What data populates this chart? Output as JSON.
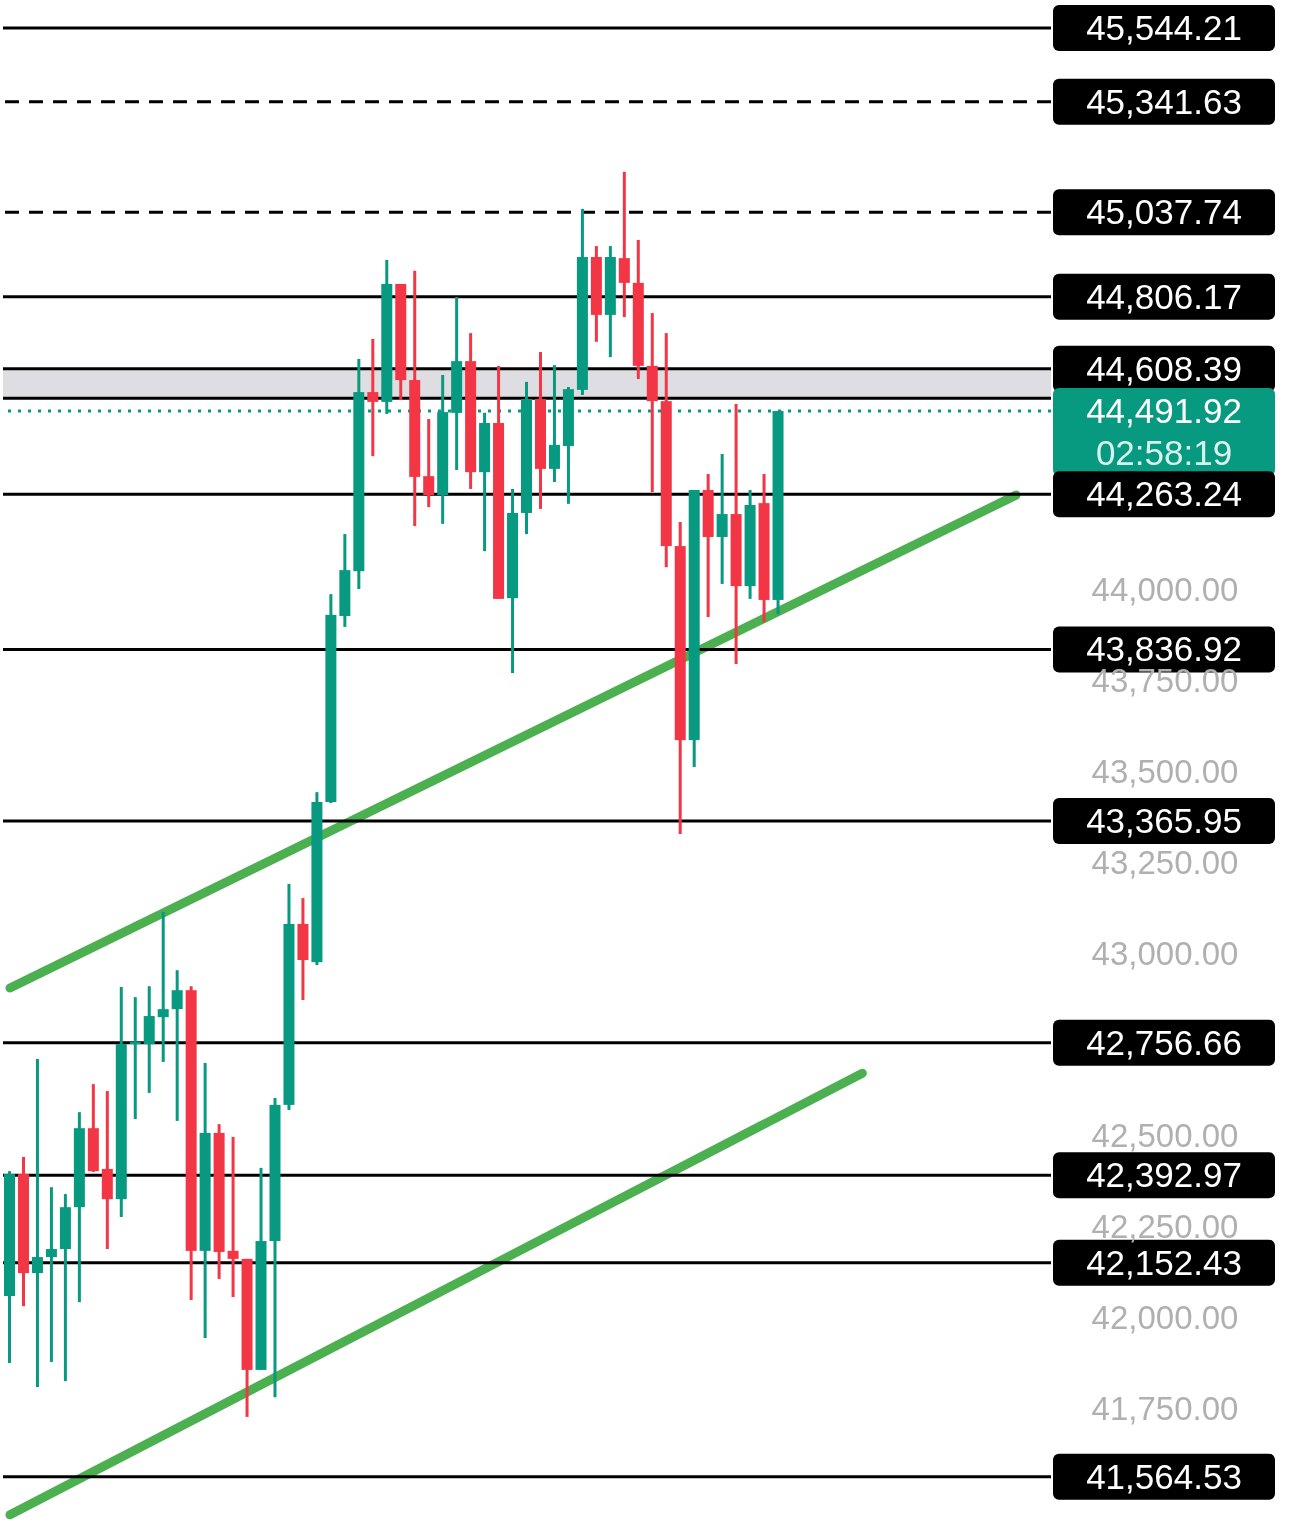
{
  "chart_data": {
    "type": "candlestick",
    "categories": [
      null,
      null,
      null,
      null,
      null,
      null,
      null,
      null,
      null,
      null,
      null,
      null,
      null,
      null,
      null,
      null,
      null,
      null,
      null,
      null,
      null,
      null,
      null,
      null,
      null,
      null,
      null,
      null,
      null,
      null,
      null,
      null,
      null,
      null,
      null,
      null,
      null,
      null,
      null,
      null,
      null,
      null,
      null,
      null,
      null,
      null,
      null,
      null,
      null,
      null,
      null,
      null,
      null,
      null,
      null,
      null,
      null,
      null,
      null,
      null,
      null,
      null,
      null,
      null,
      null,
      null,
      null,
      null,
      null,
      null,
      null,
      null,
      null,
      null,
      null
    ],
    "ohlc": [
      [
        42061,
        42404,
        41877,
        42396
      ],
      [
        42396,
        42443,
        42033,
        42124
      ],
      [
        42124,
        42712,
        41811,
        42168
      ],
      [
        42168,
        42360,
        41880,
        42190
      ],
      [
        42190,
        42341,
        41827,
        42305
      ],
      [
        42305,
        42566,
        42044,
        42522
      ],
      [
        42522,
        42643,
        42402,
        42404
      ],
      [
        42410,
        42624,
        42190,
        42327
      ],
      [
        42327,
        42910,
        42278,
        42753
      ],
      [
        42753,
        42882,
        42547,
        42759
      ],
      [
        42753,
        42912,
        42619,
        42830
      ],
      [
        42827,
        43116,
        42704,
        42849
      ],
      [
        42849,
        42956,
        42542,
        42901
      ],
      [
        42901,
        42912,
        42050,
        42185
      ],
      [
        42185,
        42701,
        41946,
        42509
      ],
      [
        42509,
        42533,
        42108,
        42182
      ],
      [
        42185,
        42498,
        42058,
        42163
      ],
      [
        42163,
        42163,
        41729,
        41858
      ],
      [
        41858,
        42413,
        41858,
        42212
      ],
      [
        42212,
        42605,
        41783,
        42586
      ],
      [
        42586,
        43193,
        42572,
        43083
      ],
      [
        43083,
        43154,
        42874,
        42984
      ],
      [
        42978,
        43445,
        42970,
        43418
      ],
      [
        43418,
        43989,
        43415,
        43932
      ],
      [
        43929,
        44154,
        43899,
        44055
      ],
      [
        44052,
        44635,
        44003,
        44544
      ],
      [
        44544,
        44690,
        44368,
        44517
      ],
      [
        44517,
        44907,
        44484,
        44841
      ],
      [
        44841,
        44841,
        44522,
        44577
      ],
      [
        44577,
        44877,
        44176,
        44311
      ],
      [
        44313,
        44470,
        44228,
        44261
      ],
      [
        44261,
        44591,
        44182,
        44489
      ],
      [
        44487,
        44805,
        44330,
        44629
      ],
      [
        44629,
        44706,
        44278,
        44324
      ],
      [
        44324,
        44487,
        44107,
        44459
      ],
      [
        44459,
        44616,
        43976,
        43976
      ],
      [
        43978,
        44278,
        43772,
        44212
      ],
      [
        44212,
        44572,
        44154,
        44525
      ],
      [
        44525,
        44654,
        44223,
        44333
      ],
      [
        44333,
        44618,
        44297,
        44399
      ],
      [
        44396,
        44558,
        44237,
        44552
      ],
      [
        44550,
        45047,
        44536,
        44915
      ],
      [
        44915,
        44945,
        44682,
        44756
      ],
      [
        44756,
        44945,
        44640,
        44915
      ],
      [
        44912,
        45149,
        44750,
        44844
      ],
      [
        44844,
        44962,
        44580,
        44616
      ],
      [
        44616,
        44761,
        44269,
        44519
      ],
      [
        44519,
        44706,
        44063,
        44121
      ],
      [
        44121,
        44187,
        43330,
        43588
      ],
      [
        43588,
        44275,
        43514,
        44275
      ],
      [
        44275,
        44319,
        43926,
        44146
      ],
      [
        44146,
        44374,
        44017,
        44209
      ],
      [
        44209,
        44511,
        43797,
        44011
      ],
      [
        44011,
        44275,
        43976,
        44234
      ],
      [
        44239,
        44319,
        43912,
        43973
      ],
      [
        43973,
        44492,
        43934,
        44492
      ],
      null,
      null,
      null,
      null,
      null,
      null,
      null,
      null,
      null,
      null,
      null,
      null,
      null,
      null,
      null,
      null,
      null,
      null,
      null
    ],
    "colors": [
      "#089981",
      "#f23645",
      "#089981",
      "#089981",
      "#089981",
      "#089981",
      "#f23645",
      "#f23645",
      "#089981",
      "#089981",
      "#089981",
      "#089981",
      "#089981",
      "#f23645",
      "#089981",
      "#f23645",
      "#f23645",
      "#f23645",
      "#089981",
      "#089981",
      "#089981",
      "#f23645",
      "#089981",
      "#089981",
      "#089981",
      "#089981",
      "#f23645",
      "#089981",
      "#f23645",
      "#f23645",
      "#f23645",
      "#089981",
      "#089981",
      "#f23645",
      "#089981",
      "#f23645",
      "#089981",
      "#089981",
      "#f23645",
      "#089981",
      "#089981",
      "#089981",
      "#f23645",
      "#089981",
      "#f23645",
      "#f23645",
      "#f23645",
      "#f23645",
      "#f23645",
      "#089981",
      "#f23645",
      "#089981",
      "#f23645",
      "#089981",
      "#f23645",
      "#089981",
      null,
      null,
      null,
      null,
      null,
      null,
      null,
      null,
      null,
      null,
      null,
      null,
      null,
      null,
      null,
      null,
      null,
      null,
      null
    ],
    "series": [
      {
        "type": "line",
        "color": "#4caf50",
        "values": [
          42907,
          null,
          null,
          null,
          null,
          null,
          null,
          null,
          null,
          null,
          null,
          null,
          null,
          null,
          null,
          null,
          null,
          null,
          null,
          null,
          null,
          null,
          null,
          null,
          null,
          null,
          null,
          null,
          null,
          null,
          null,
          null,
          null,
          null,
          null,
          null,
          null,
          null,
          null,
          null,
          null,
          null,
          null,
          null,
          null,
          null,
          null,
          null,
          null,
          null,
          null,
          null,
          null,
          null,
          null,
          null,
          null,
          null,
          null,
          null,
          null,
          null,
          null,
          null,
          null,
          null,
          null,
          null,
          null,
          null,
          null,
          null,
          44261,
          null,
          null
        ]
      },
      {
        "type": "line",
        "color": "#4caf50",
        "values": [
          41460,
          null,
          null,
          null,
          null,
          null,
          null,
          null,
          null,
          null,
          null,
          null,
          null,
          null,
          null,
          null,
          null,
          null,
          null,
          null,
          null,
          null,
          null,
          null,
          null,
          null,
          null,
          null,
          null,
          null,
          null,
          null,
          null,
          null,
          null,
          null,
          null,
          null,
          null,
          null,
          null,
          null,
          null,
          null,
          null,
          null,
          null,
          null,
          null,
          null,
          null,
          null,
          null,
          null,
          null,
          null,
          null,
          null,
          null,
          null,
          null,
          42673,
          null,
          null,
          null,
          null,
          null,
          null,
          null,
          null,
          null,
          null,
          null,
          null,
          null
        ]
      }
    ],
    "ylim": [
      41432,
      45621
    ],
    "yticks": [
      {
        "value": 41750,
        "label": "41,750.00"
      },
      {
        "value": 42000,
        "label": "42,000.00"
      },
      {
        "value": 42250,
        "label": "42,250.00"
      },
      {
        "value": 42500,
        "label": "42,500.00"
      },
      {
        "value": 43000,
        "label": "43,000.00"
      },
      {
        "value": 43250,
        "label": "43,250.00"
      },
      {
        "value": 43500,
        "label": "43,500.00"
      },
      {
        "value": 43750,
        "label": "43,750.00"
      },
      {
        "value": 44000,
        "label": "44,000.00"
      }
    ],
    "tick_labels": "y",
    "bands": [
      {
        "axis": "y",
        "from": 44527,
        "to": 44608.39,
        "color": "#dedee2"
      }
    ],
    "ref_lines": [
      {
        "axis": "y",
        "value": 45544.21,
        "label": "45,544.21",
        "color": "#000000",
        "line_style": "solid"
      },
      {
        "axis": "y",
        "value": 45341.63,
        "label": "45,341.63",
        "color": "#000000",
        "line_style": "dashed"
      },
      {
        "axis": "y",
        "value": 45037.74,
        "label": "45,037.74",
        "color": "#000000",
        "line_style": "dashed"
      },
      {
        "axis": "y",
        "value": 44806.17,
        "label": "44,806.17",
        "color": "#000000",
        "line_style": "solid"
      },
      {
        "axis": "y",
        "value": 44608.39,
        "label": "44,608.39",
        "color": "#000000",
        "line_style": "solid"
      },
      {
        "axis": "y",
        "value": 44527,
        "color": "#000000",
        "line_style": "solid"
      },
      {
        "axis": "y",
        "value": 44491.92,
        "label": "44,491.92\n02:58:19",
        "color": "#089981",
        "line_style": "dotted"
      },
      {
        "axis": "y",
        "value": 44263.24,
        "label": "44,263.24",
        "color": "#000000",
        "line_style": "solid"
      },
      {
        "axis": "y",
        "value": 43836.92,
        "label": "43,836.92",
        "color": "#000000",
        "line_style": "solid"
      },
      {
        "axis": "y",
        "value": 43365.95,
        "label": "43,365.95",
        "color": "#000000",
        "line_style": "solid"
      },
      {
        "axis": "y",
        "value": 42756.66,
        "label": "42,756.66",
        "color": "#000000",
        "line_style": "solid"
      },
      {
        "axis": "y",
        "value": 42392.97,
        "label": "42,392.97",
        "color": "#000000",
        "line_style": "solid"
      },
      {
        "axis": "y",
        "value": 42152.43,
        "label": "42,152.43",
        "color": "#000000",
        "line_style": "solid"
      },
      {
        "axis": "y",
        "value": 41564.53,
        "label": "41,564.53",
        "color": "#000000",
        "line_style": "solid"
      }
    ]
  }
}
